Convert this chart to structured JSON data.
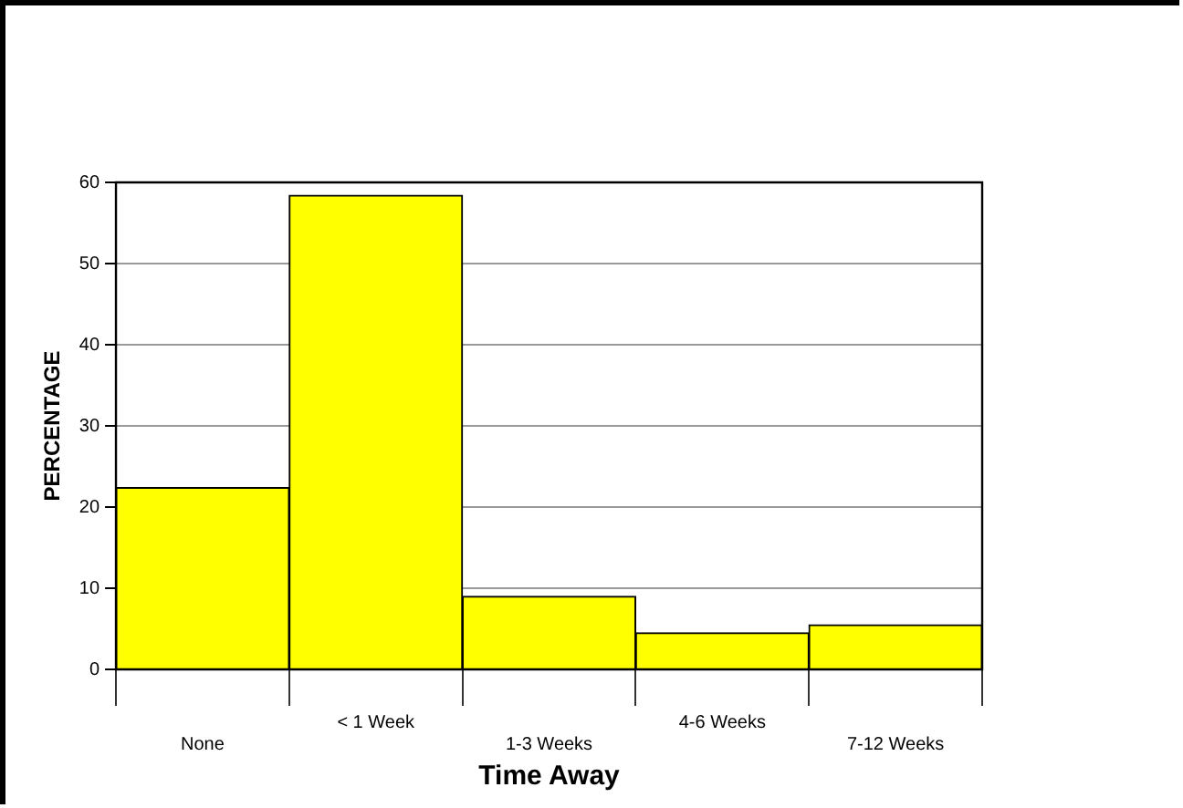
{
  "chart_data": {
    "type": "bar",
    "xlabel": "Time Away",
    "ylabel": "PERCENTAGE",
    "categories": [
      "None",
      "< 1 Week",
      "1-3 Weeks",
      "4-6 Weeks",
      "7-12 Weeks"
    ],
    "values": [
      22.4,
      58.4,
      9.0,
      4.5,
      5.5
    ],
    "color": "#ffff00",
    "ylim": [
      0,
      60
    ],
    "yticks": [
      0,
      10,
      20,
      30,
      40,
      50,
      60
    ],
    "grid": "y",
    "legend": false
  }
}
